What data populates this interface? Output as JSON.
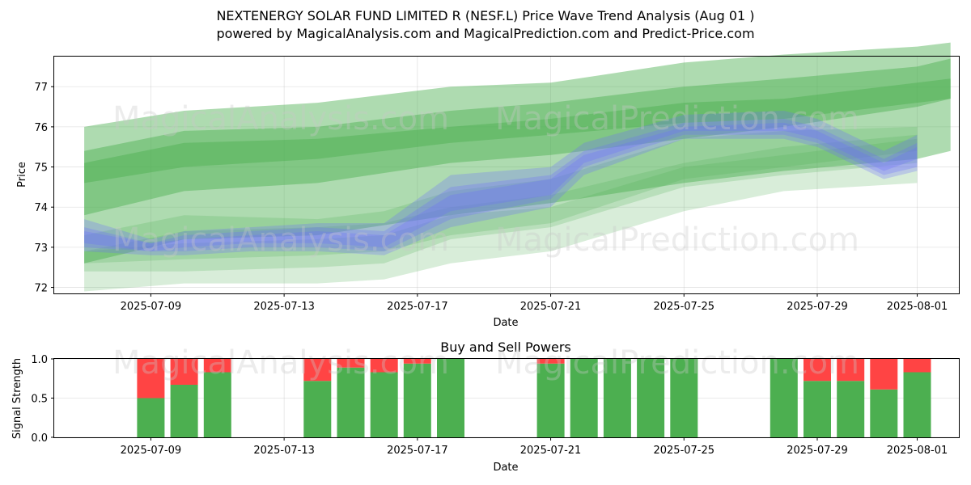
{
  "header": {
    "title_line1": "NEXTENERGY SOLAR FUND LIMITED R (NESF.L) Price Wave Trend Analysis (Aug 01 )",
    "title_line2": "powered by MagicalAnalysis.com and MagicalPrediction.com and Predict-Price.com"
  },
  "watermarks": {
    "left": "MagicalAnalysis.com",
    "right": "MagicalPrediction.com"
  },
  "colors": {
    "green_band": "#4caf50",
    "blue_band": "#6b6bff",
    "buy_bar": "#4caf50",
    "sell_bar": "#ff4444",
    "grid": "#b0b0b0"
  },
  "chart_data": [
    {
      "type": "area",
      "title": "",
      "xlabel": "Date",
      "ylabel": "Price",
      "xlim": [
        "2025-07-06",
        "2025-08-02"
      ],
      "ylim": [
        71.85,
        77.75
      ],
      "xticks": [
        "2025-07-09",
        "2025-07-13",
        "2025-07-17",
        "2025-07-21",
        "2025-07-25",
        "2025-07-29",
        "2025-08-01"
      ],
      "yticks": [
        72,
        73,
        74,
        75,
        76,
        77
      ],
      "grid": true,
      "series": [
        {
          "group": "green_upper",
          "x": [
            "2025-07-07",
            "2025-07-10",
            "2025-07-14",
            "2025-07-18",
            "2025-07-21",
            "2025-07-25",
            "2025-07-28",
            "2025-08-01",
            "2025-08-02"
          ],
          "lower": [
            72.6,
            73.2,
            73.3,
            73.8,
            74.1,
            74.6,
            74.9,
            75.2,
            75.4
          ],
          "upper": [
            76.0,
            76.4,
            76.6,
            77.0,
            77.1,
            77.6,
            77.8,
            78.0,
            78.1
          ]
        },
        {
          "group": "green_upper",
          "x": [
            "2025-07-07",
            "2025-07-10",
            "2025-07-14",
            "2025-07-18",
            "2025-07-21",
            "2025-07-25",
            "2025-07-28",
            "2025-08-01",
            "2025-08-02"
          ],
          "lower": [
            73.8,
            74.4,
            74.6,
            75.1,
            75.3,
            75.7,
            76.0,
            76.5,
            76.7
          ],
          "upper": [
            75.4,
            75.9,
            76.0,
            76.4,
            76.6,
            77.0,
            77.2,
            77.5,
            77.7
          ]
        },
        {
          "group": "green_upper",
          "x": [
            "2025-07-07",
            "2025-07-10",
            "2025-07-14",
            "2025-07-18",
            "2025-07-21",
            "2025-07-25",
            "2025-07-28",
            "2025-08-01",
            "2025-08-02"
          ],
          "lower": [
            74.6,
            75.0,
            75.2,
            75.6,
            75.8,
            76.1,
            76.2,
            76.6,
            76.7
          ],
          "upper": [
            75.1,
            75.6,
            75.7,
            76.0,
            76.2,
            76.6,
            76.7,
            77.1,
            77.2
          ]
        },
        {
          "group": "green_lower",
          "x": [
            "2025-07-07",
            "2025-07-10",
            "2025-07-14",
            "2025-07-16",
            "2025-07-18",
            "2025-07-21",
            "2025-07-25",
            "2025-07-28",
            "2025-08-01"
          ],
          "lower": [
            71.9,
            72.1,
            72.1,
            72.2,
            72.6,
            72.9,
            73.9,
            74.4,
            74.6
          ],
          "upper": [
            73.3,
            73.8,
            73.7,
            73.9,
            74.4,
            74.7,
            75.7,
            75.9,
            76.0
          ]
        },
        {
          "group": "green_lower",
          "x": [
            "2025-07-07",
            "2025-07-10",
            "2025-07-14",
            "2025-07-16",
            "2025-07-18",
            "2025-07-21",
            "2025-07-25",
            "2025-07-28",
            "2025-08-01"
          ],
          "lower": [
            72.4,
            72.4,
            72.5,
            72.6,
            73.2,
            73.5,
            74.5,
            74.8,
            75.1
          ],
          "upper": [
            72.9,
            73.4,
            73.5,
            73.6,
            74.0,
            74.3,
            75.1,
            75.5,
            75.8
          ]
        },
        {
          "group": "green_lower",
          "x": [
            "2025-07-07",
            "2025-07-10",
            "2025-07-14",
            "2025-07-16",
            "2025-07-18",
            "2025-07-21",
            "2025-07-25",
            "2025-07-28",
            "2025-08-01"
          ],
          "lower": [
            72.6,
            72.7,
            72.8,
            72.9,
            73.3,
            73.6,
            74.7,
            75.0,
            75.4
          ],
          "upper": [
            72.9,
            73.1,
            73.2,
            73.3,
            73.8,
            74.0,
            75.0,
            75.3,
            75.7
          ]
        },
        {
          "group": "blue",
          "x": [
            "2025-07-07",
            "2025-07-09",
            "2025-07-10",
            "2025-07-12",
            "2025-07-14",
            "2025-07-16",
            "2025-07-18",
            "2025-07-21",
            "2025-07-22",
            "2025-07-25",
            "2025-07-28",
            "2025-07-29",
            "2025-07-31",
            "2025-08-01"
          ],
          "lower": [
            72.9,
            72.8,
            72.8,
            72.9,
            72.9,
            72.8,
            73.5,
            74.0,
            74.8,
            75.7,
            75.7,
            75.5,
            74.7,
            74.9
          ],
          "upper": [
            73.7,
            73.2,
            73.4,
            73.5,
            73.6,
            73.6,
            74.8,
            75.0,
            75.6,
            76.3,
            76.4,
            76.2,
            75.4,
            75.8
          ]
        },
        {
          "group": "blue",
          "x": [
            "2025-07-07",
            "2025-07-09",
            "2025-07-10",
            "2025-07-12",
            "2025-07-14",
            "2025-07-16",
            "2025-07-18",
            "2025-07-21",
            "2025-07-22",
            "2025-07-25",
            "2025-07-28",
            "2025-07-29",
            "2025-07-31",
            "2025-08-01"
          ],
          "lower": [
            73.0,
            72.9,
            72.9,
            73.0,
            73.0,
            72.9,
            73.7,
            74.2,
            75.0,
            75.8,
            75.8,
            75.6,
            74.8,
            75.0
          ],
          "upper": [
            73.5,
            73.1,
            73.3,
            73.4,
            73.5,
            73.4,
            74.5,
            74.8,
            75.4,
            76.1,
            76.2,
            76.0,
            75.2,
            75.6
          ]
        },
        {
          "group": "blue",
          "x": [
            "2025-07-07",
            "2025-07-09",
            "2025-07-10",
            "2025-07-12",
            "2025-07-14",
            "2025-07-16",
            "2025-07-18",
            "2025-07-21",
            "2025-07-22",
            "2025-07-25",
            "2025-07-28",
            "2025-07-29",
            "2025-07-31",
            "2025-08-01"
          ],
          "lower": [
            73.1,
            72.9,
            73.0,
            73.1,
            73.1,
            73.0,
            73.9,
            74.3,
            75.1,
            75.9,
            75.9,
            75.7,
            74.9,
            75.2
          ],
          "upper": [
            73.4,
            73.1,
            73.2,
            73.3,
            73.4,
            73.3,
            74.3,
            74.7,
            75.3,
            76.0,
            76.1,
            75.9,
            75.1,
            75.5
          ]
        }
      ]
    },
    {
      "type": "bar",
      "title": "Buy and Sell Powers",
      "xlabel": "Date",
      "ylabel": "Signal Strength",
      "ylim": [
        0,
        1.0
      ],
      "yticks": [
        "0.0",
        "0.5",
        "1.0"
      ],
      "xticks": [
        "2025-07-09",
        "2025-07-13",
        "2025-07-17",
        "2025-07-21",
        "2025-07-25",
        "2025-07-29",
        "2025-08-01"
      ],
      "grid": true,
      "categories": [
        "2025-07-09",
        "2025-07-10",
        "2025-07-11",
        "2025-07-14",
        "2025-07-15",
        "2025-07-16",
        "2025-07-17",
        "2025-07-18",
        "2025-07-21",
        "2025-07-22",
        "2025-07-23",
        "2025-07-24",
        "2025-07-25",
        "2025-07-28",
        "2025-07-29",
        "2025-07-30",
        "2025-07-31",
        "2025-08-01"
      ],
      "series": [
        {
          "name": "Buy",
          "values": [
            0.5,
            0.67,
            0.83,
            0.72,
            0.89,
            0.83,
            0.94,
            1.0,
            0.94,
            1.0,
            1.0,
            1.0,
            1.0,
            1.0,
            0.72,
            0.72,
            0.61,
            0.83
          ]
        },
        {
          "name": "Sell",
          "values": [
            0.5,
            0.33,
            0.17,
            0.28,
            0.11,
            0.17,
            0.06,
            0.0,
            0.06,
            0.0,
            0.0,
            0.0,
            0.0,
            0.0,
            0.28,
            0.28,
            0.39,
            0.17
          ]
        }
      ]
    }
  ]
}
